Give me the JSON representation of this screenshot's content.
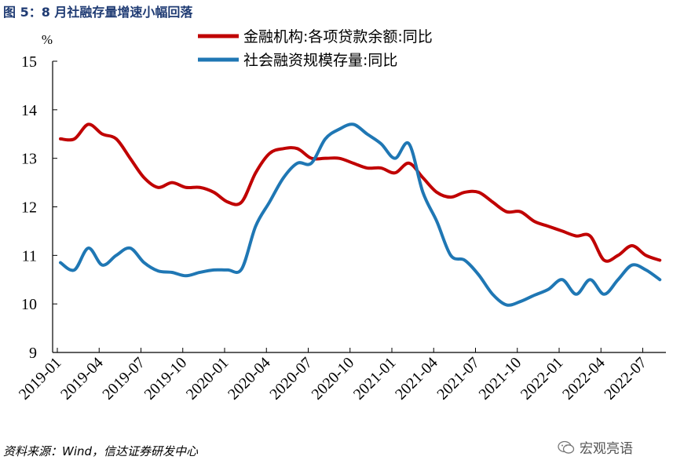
{
  "title": "图 5：8 月社融存量增速小幅回落",
  "source": "资料来源：Wind，信达证券研发中心",
  "watermark": "宏观亮语",
  "chart_data": {
    "type": "line",
    "title": "图 5：8 月社融存量增速小幅回落",
    "unit_label": "%",
    "ylim": [
      9,
      15
    ],
    "yticks": [
      9,
      10,
      11,
      12,
      13,
      14,
      15
    ],
    "xticks": [
      "2019-01",
      "2019-04",
      "2019-07",
      "2019-10",
      "2020-01",
      "2020-04",
      "2020-07",
      "2020-10",
      "2021-01",
      "2021-04",
      "2021-07",
      "2021-10",
      "2022-01",
      "2022-04",
      "2022-07"
    ],
    "x": [
      "2019-01",
      "2019-02",
      "2019-03",
      "2019-04",
      "2019-05",
      "2019-06",
      "2019-07",
      "2019-08",
      "2019-09",
      "2019-10",
      "2019-11",
      "2019-12",
      "2020-01",
      "2020-02",
      "2020-03",
      "2020-04",
      "2020-05",
      "2020-06",
      "2020-07",
      "2020-08",
      "2020-09",
      "2020-10",
      "2020-11",
      "2020-12",
      "2021-01",
      "2021-02",
      "2021-03",
      "2021-04",
      "2021-05",
      "2021-06",
      "2021-07",
      "2021-08",
      "2021-09",
      "2021-10",
      "2021-11",
      "2021-12",
      "2022-01",
      "2022-02",
      "2022-03",
      "2022-04",
      "2022-05",
      "2022-06",
      "2022-07",
      "2022-08"
    ],
    "grid": false,
    "legend_position": "top",
    "series": [
      {
        "name": "金融机构:各项贷款余额:同比",
        "color": "#c00000",
        "values": [
          13.4,
          13.4,
          13.7,
          13.5,
          13.4,
          13.0,
          12.6,
          12.4,
          12.5,
          12.4,
          12.4,
          12.3,
          12.1,
          12.1,
          12.7,
          13.1,
          13.2,
          13.2,
          13.0,
          13.0,
          13.0,
          12.9,
          12.8,
          12.8,
          12.7,
          12.9,
          12.6,
          12.3,
          12.2,
          12.3,
          12.3,
          12.1,
          11.9,
          11.9,
          11.7,
          11.6,
          11.5,
          11.4,
          11.4,
          10.9,
          11.0,
          11.2,
          11.0,
          10.9
        ]
      },
      {
        "name": "社会融资规模存量:同比",
        "color": "#1f77b4",
        "values": [
          10.85,
          10.7,
          11.15,
          10.8,
          11.0,
          11.15,
          10.85,
          10.68,
          10.65,
          10.58,
          10.65,
          10.7,
          10.7,
          10.72,
          11.6,
          12.1,
          12.6,
          12.9,
          12.9,
          13.4,
          13.6,
          13.7,
          13.5,
          13.3,
          13.0,
          13.3,
          12.3,
          11.7,
          11.0,
          10.9,
          10.6,
          10.2,
          9.98,
          10.05,
          10.18,
          10.3,
          10.5,
          10.2,
          10.5,
          10.2,
          10.5,
          10.8,
          10.7,
          10.5
        ]
      }
    ]
  }
}
